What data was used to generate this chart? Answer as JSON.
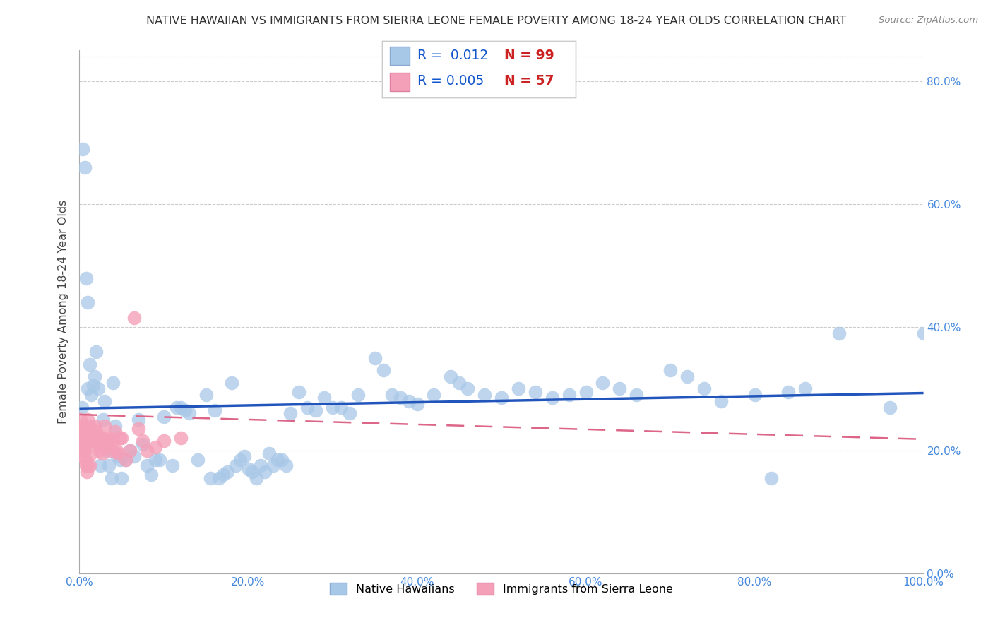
{
  "title": "NATIVE HAWAIIAN VS IMMIGRANTS FROM SIERRA LEONE FEMALE POVERTY AMONG 18-24 YEAR OLDS CORRELATION CHART",
  "source": "Source: ZipAtlas.com",
  "ylabel": "Female Poverty Among 18-24 Year Olds",
  "xlim": [
    0,
    1.0
  ],
  "ylim": [
    0,
    0.85
  ],
  "xticks": [
    0.0,
    0.2,
    0.4,
    0.6,
    0.8,
    1.0
  ],
  "yticks": [
    0.0,
    0.2,
    0.4,
    0.6,
    0.8
  ],
  "xticklabels": [
    "0.0%",
    "20.0%",
    "40.0%",
    "60.0%",
    "80.0%",
    "100.0%"
  ],
  "yticklabels": [
    "0.0%",
    "20.0%",
    "40.0%",
    "60.0%",
    "80.0%"
  ],
  "series1_color": "#a8c8e8",
  "series2_color": "#f4a0b8",
  "series1_name": "Native Hawaiians",
  "series2_name": "Immigrants from Sierra Leone",
  "trend1_color": "#2255bb",
  "trend2_color": "#dd6688",
  "tick_color": "#4488dd",
  "legend_R1": "R =  0.012",
  "legend_N1": "N = 99",
  "legend_R2": "R = 0.005",
  "legend_N2": "N = 57",
  "nh_x": [
    0.003,
    0.004,
    0.006,
    0.008,
    0.01,
    0.01,
    0.012,
    0.014,
    0.016,
    0.018,
    0.02,
    0.022,
    0.025,
    0.028,
    0.03,
    0.032,
    0.035,
    0.038,
    0.04,
    0.042,
    0.045,
    0.048,
    0.05,
    0.055,
    0.06,
    0.065,
    0.07,
    0.075,
    0.08,
    0.085,
    0.09,
    0.095,
    0.1,
    0.11,
    0.115,
    0.12,
    0.125,
    0.13,
    0.14,
    0.15,
    0.155,
    0.16,
    0.165,
    0.17,
    0.175,
    0.18,
    0.185,
    0.19,
    0.195,
    0.2,
    0.205,
    0.21,
    0.215,
    0.22,
    0.225,
    0.23,
    0.235,
    0.24,
    0.245,
    0.25,
    0.26,
    0.27,
    0.28,
    0.29,
    0.3,
    0.31,
    0.32,
    0.33,
    0.35,
    0.36,
    0.37,
    0.38,
    0.39,
    0.4,
    0.42,
    0.44,
    0.45,
    0.46,
    0.48,
    0.5,
    0.52,
    0.54,
    0.56,
    0.58,
    0.6,
    0.62,
    0.64,
    0.66,
    0.7,
    0.72,
    0.74,
    0.76,
    0.8,
    0.82,
    0.84,
    0.86,
    0.9,
    0.96,
    1.0
  ],
  "nh_y": [
    0.27,
    0.69,
    0.66,
    0.48,
    0.3,
    0.44,
    0.34,
    0.29,
    0.305,
    0.32,
    0.36,
    0.3,
    0.175,
    0.25,
    0.28,
    0.2,
    0.175,
    0.155,
    0.31,
    0.24,
    0.19,
    0.185,
    0.155,
    0.185,
    0.2,
    0.19,
    0.25,
    0.21,
    0.175,
    0.16,
    0.185,
    0.185,
    0.255,
    0.175,
    0.27,
    0.27,
    0.265,
    0.26,
    0.185,
    0.29,
    0.155,
    0.265,
    0.155,
    0.16,
    0.165,
    0.31,
    0.175,
    0.185,
    0.19,
    0.17,
    0.165,
    0.155,
    0.175,
    0.165,
    0.195,
    0.175,
    0.185,
    0.185,
    0.175,
    0.26,
    0.295,
    0.27,
    0.265,
    0.285,
    0.27,
    0.27,
    0.26,
    0.29,
    0.35,
    0.33,
    0.29,
    0.285,
    0.28,
    0.275,
    0.29,
    0.32,
    0.31,
    0.3,
    0.29,
    0.285,
    0.3,
    0.295,
    0.285,
    0.29,
    0.295,
    0.31,
    0.3,
    0.29,
    0.33,
    0.32,
    0.3,
    0.28,
    0.29,
    0.155,
    0.295,
    0.3,
    0.39,
    0.27,
    0.39
  ],
  "sl_x": [
    0.001,
    0.002,
    0.003,
    0.003,
    0.004,
    0.004,
    0.005,
    0.005,
    0.006,
    0.006,
    0.007,
    0.007,
    0.008,
    0.008,
    0.009,
    0.009,
    0.01,
    0.01,
    0.011,
    0.012,
    0.012,
    0.013,
    0.014,
    0.015,
    0.016,
    0.017,
    0.018,
    0.019,
    0.02,
    0.021,
    0.022,
    0.023,
    0.024,
    0.025,
    0.026,
    0.027,
    0.028,
    0.03,
    0.032,
    0.034,
    0.036,
    0.038,
    0.04,
    0.042,
    0.044,
    0.046,
    0.048,
    0.05,
    0.055,
    0.06,
    0.065,
    0.07,
    0.075,
    0.08,
    0.09,
    0.1,
    0.12
  ],
  "sl_y": [
    0.25,
    0.24,
    0.235,
    0.21,
    0.23,
    0.2,
    0.23,
    0.19,
    0.22,
    0.2,
    0.21,
    0.185,
    0.22,
    0.175,
    0.22,
    0.165,
    0.25,
    0.175,
    0.235,
    0.24,
    0.175,
    0.215,
    0.195,
    0.23,
    0.22,
    0.215,
    0.24,
    0.22,
    0.23,
    0.22,
    0.215,
    0.21,
    0.2,
    0.22,
    0.21,
    0.195,
    0.22,
    0.24,
    0.205,
    0.215,
    0.22,
    0.2,
    0.215,
    0.23,
    0.2,
    0.195,
    0.22,
    0.22,
    0.185,
    0.2,
    0.415,
    0.235,
    0.215,
    0.2,
    0.205,
    0.215,
    0.22
  ]
}
